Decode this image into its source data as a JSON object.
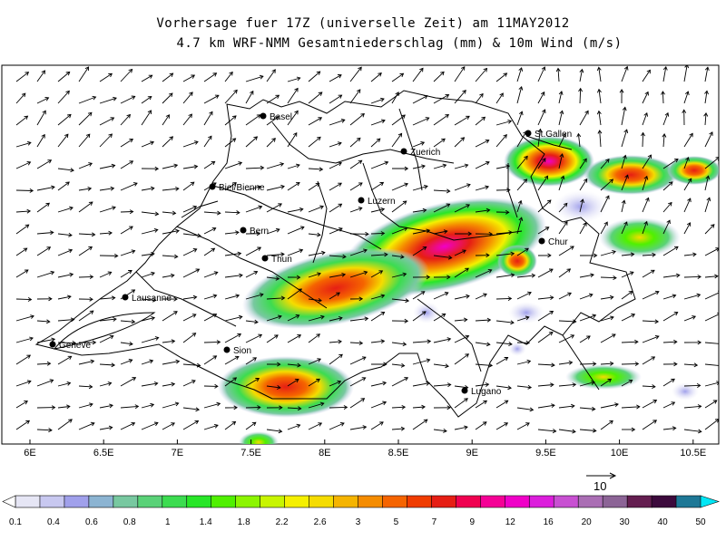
{
  "title_line1": "Vorhersage fuer 17Z (universelle Zeit) am 11MAY2012",
  "title_line2": "4.7 km WRF-NMM Gesamtniederschlag (mm) & 10m Wind (m/s)",
  "x_ticks": [
    "6E",
    "6.5E",
    "7E",
    "7.5E",
    "8E",
    "8.5E",
    "9E",
    "9.5E",
    "10E",
    "10.5E"
  ],
  "cities": [
    {
      "name": "Basel"
    },
    {
      "name": "Zuerich"
    },
    {
      "name": "St.Gallen"
    },
    {
      "name": "Biel/Bienne"
    },
    {
      "name": "Luzern"
    },
    {
      "name": "Bern"
    },
    {
      "name": "Thun"
    },
    {
      "name": "Chur"
    },
    {
      "name": "Lausanne"
    },
    {
      "name": "Geneve"
    },
    {
      "name": "Sion"
    },
    {
      "name": "Lugano"
    }
  ],
  "wind_reference_label": "10",
  "colorbar": {
    "labels": [
      "0.1",
      "0.4",
      "0.6",
      "0.8",
      "1",
      "1.4",
      "1.8",
      "2.2",
      "2.6",
      "3",
      "5",
      "7",
      "9",
      "12",
      "16",
      "20",
      "30",
      "40",
      "50"
    ],
    "colors": [
      "#e6e6f5",
      "#c8c8f0",
      "#a0a0eb",
      "#8cb4d2",
      "#78c8a0",
      "#5ad278",
      "#3cdc50",
      "#28e628",
      "#50f000",
      "#8cf500",
      "#c8f500",
      "#f5f000",
      "#f5dc00",
      "#f5b400",
      "#f58c00",
      "#f56400",
      "#f03c00",
      "#e61e14",
      "#f00050",
      "#f50096",
      "#f000c8",
      "#dc1edc",
      "#c850d2",
      "#aa6eb4",
      "#8c6496",
      "#641e50",
      "#3c0a3c",
      "#1e7896"
    ]
  }
}
